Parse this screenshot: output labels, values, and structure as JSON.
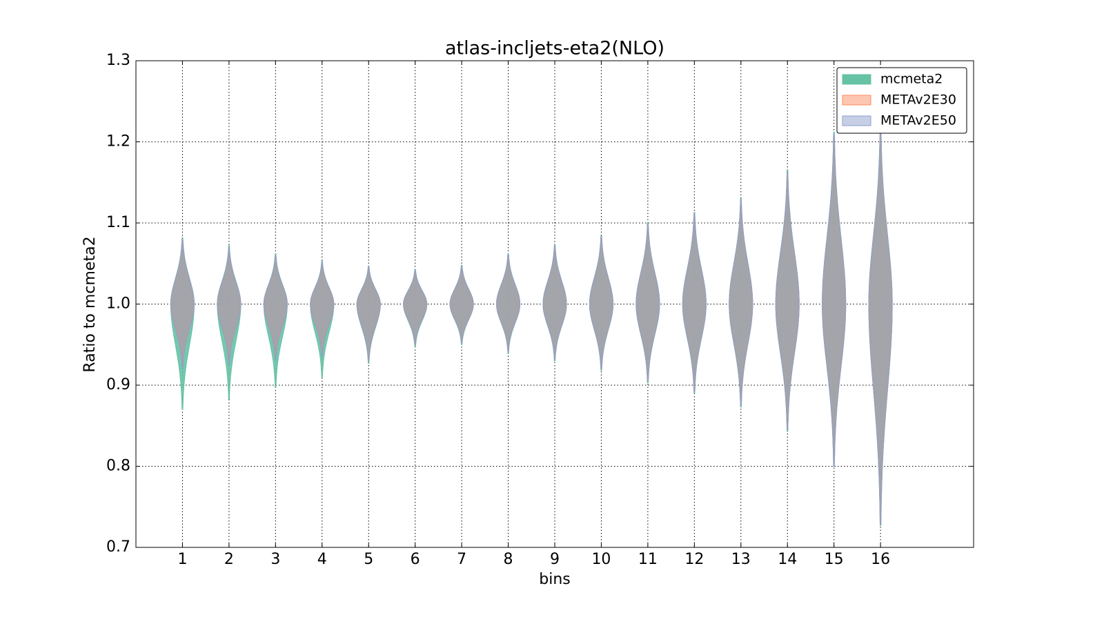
{
  "chart_data": {
    "type": "violin",
    "title": "atlas-incljets-eta2(NLO)",
    "x_label": "bins",
    "y_label": "Ratio to mcmeta2",
    "categories": [
      "1",
      "2",
      "3",
      "4",
      "5",
      "6",
      "7",
      "8",
      "9",
      "10",
      "11",
      "12",
      "13",
      "14",
      "15",
      "16"
    ],
    "xlim": [
      0,
      18
    ],
    "ylim": [
      0.7,
      1.3
    ],
    "yticks": [
      0.7,
      0.8,
      0.9,
      {
        "value": 1,
        "label": "1.0"
      },
      1.1,
      1.2,
      1.3
    ],
    "grid": true,
    "legend": "upper right",
    "series": [
      {
        "name": "mcmeta2",
        "color": "#66c2a5",
        "min": [
          0.87,
          0.883,
          0.897,
          0.91,
          0.927,
          0.947,
          0.95,
          0.94,
          0.93,
          0.918,
          0.903,
          0.89,
          0.873,
          0.843,
          0.8,
          0.727
        ],
        "peak": [
          1,
          1,
          1,
          1,
          1,
          1,
          1,
          1,
          1,
          1,
          1,
          1,
          1,
          1,
          1,
          1
        ],
        "max": [
          1.082,
          1.072,
          1.062,
          1.053,
          1.047,
          1.043,
          1.048,
          1.062,
          1.073,
          1.084,
          1.1,
          1.113,
          1.13,
          1.165,
          1.212,
          1.22
        ]
      },
      {
        "name": "METAv2E30",
        "color": "#fc8d62",
        "min": [
          0.925,
          0.93,
          0.935,
          0.94,
          0.93,
          0.95,
          0.952,
          0.942,
          0.932,
          0.92,
          0.905,
          0.892,
          0.875,
          0.845,
          0.802,
          0.73
        ],
        "peak": [
          1,
          1,
          1,
          1,
          1,
          1,
          1,
          1,
          1,
          1,
          1,
          1,
          1,
          1,
          1,
          1
        ],
        "max": [
          1.078,
          1.068,
          1.058,
          1.05,
          1.045,
          1.041,
          1.046,
          1.06,
          1.07,
          1.082,
          1.098,
          1.11,
          1.127,
          1.16,
          1.208,
          1.215
        ]
      },
      {
        "name": "METAv2E50",
        "color": "#8da0cb",
        "min": [
          0.92,
          0.925,
          0.93,
          0.935,
          0.93,
          0.95,
          0.952,
          0.942,
          0.932,
          0.92,
          0.905,
          0.892,
          0.875,
          0.845,
          0.8,
          0.728
        ],
        "peak": [
          1,
          1,
          1,
          1,
          1,
          1,
          1,
          1,
          1,
          1,
          1,
          1,
          1,
          1,
          1,
          1
        ],
        "max": [
          1.08,
          1.07,
          1.06,
          1.052,
          1.046,
          1.042,
          1.047,
          1.061,
          1.072,
          1.083,
          1.099,
          1.112,
          1.129,
          1.163,
          1.21,
          1.218
        ]
      }
    ]
  }
}
